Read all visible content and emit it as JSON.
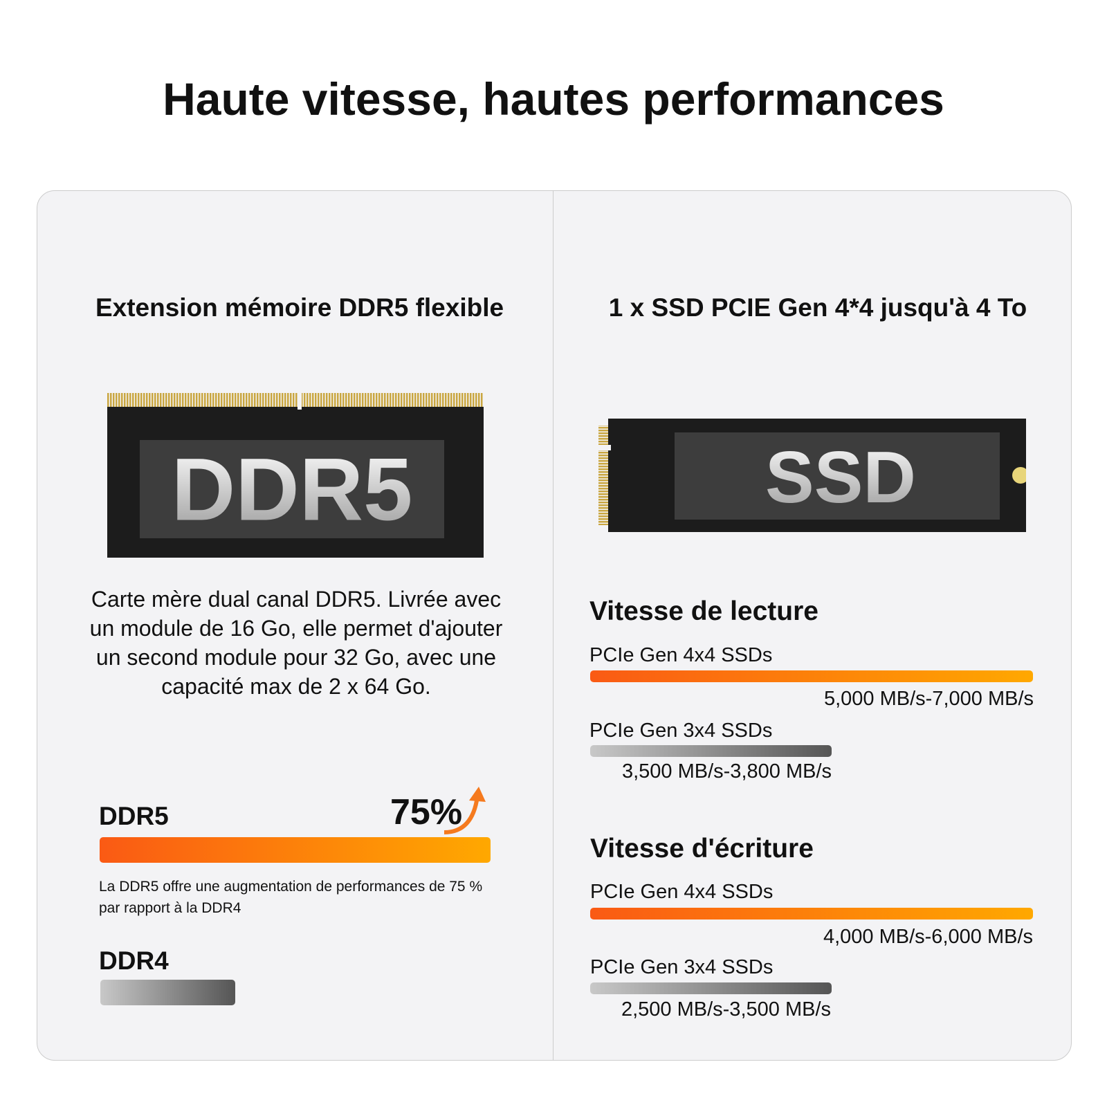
{
  "title": "Haute vitesse, hautes performances",
  "left": {
    "heading": "Extension mémoire DDR5 flexible",
    "chip_label": "DDR5",
    "description": [
      "Carte mère dual canal DDR5. Livrée avec",
      "un module de 16 Go, elle permet d'ajouter",
      "un second module pour 32 Go, avec une",
      "capacité max de 2 x 64 Go."
    ],
    "comparison": {
      "ddr5_label": "DDR5",
      "percent": "75%",
      "note": [
        "La DDR5 offre une augmentation de performances de 75 %",
        "par rapport à la DDR4"
      ],
      "ddr4_label": "DDR4"
    }
  },
  "right": {
    "heading": "1 x SSD PCIE Gen 4*4 jusqu'à 4 To",
    "chip_label": "SSD",
    "read": {
      "title": "Vitesse de lecture",
      "rows": [
        {
          "label": "PCIe Gen 4x4 SSDs",
          "range": "5,000 MB/s-7,000 MB/s"
        },
        {
          "label": "PCIe Gen 3x4 SSDs",
          "range": "3,500 MB/s-3,800 MB/s"
        }
      ]
    },
    "write": {
      "title": "Vitesse d'écriture",
      "rows": [
        {
          "label": "PCIe Gen 4x4 SSDs",
          "range": "4,000 MB/s-6,000 MB/s"
        },
        {
          "label": "PCIe Gen 3x4 SSDs",
          "range": "2,500 MB/s-3,500 MB/s"
        }
      ]
    }
  }
}
